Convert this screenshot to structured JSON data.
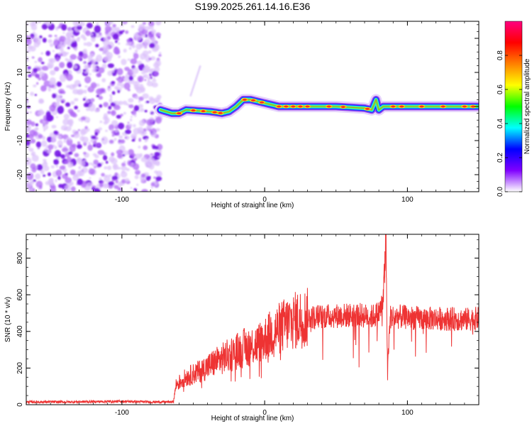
{
  "title": "S199.2025.261.14.16.E36",
  "chart_data": [
    {
      "type": "heatmap",
      "name": "spectrogram",
      "xlabel": "Height of straight line (km)",
      "ylabel": "Frequency (Hz)",
      "xlim": [
        -167,
        150
      ],
      "ylim": [
        -25,
        25
      ],
      "x_ticks": [
        -100,
        0,
        100
      ],
      "y_ticks": [
        -20,
        -10,
        0,
        10,
        20
      ],
      "noise_region_x": [
        -167,
        -73
      ],
      "signal_start_x": -73,
      "ridge": {
        "x": [
          -73,
          -65,
          -60,
          -55,
          -45,
          -38,
          -30,
          -25,
          -20,
          -15,
          -10,
          -5,
          0,
          10,
          30,
          50,
          70,
          75,
          78,
          80,
          83,
          90,
          100,
          120,
          150
        ],
        "y": [
          -1,
          -2,
          -2,
          -1,
          -1.3,
          -1.5,
          -2,
          -1.5,
          0,
          2,
          2,
          1.5,
          1,
          0,
          0,
          0,
          -0.5,
          -1,
          2,
          -1,
          0,
          0,
          0,
          0,
          0
        ]
      },
      "colorbar": {
        "label": "Normalized spectral amplitude",
        "range": [
          0,
          1
        ],
        "ticks": [
          "0.0",
          "0.2",
          "0.4",
          "0.6",
          "0.8"
        ],
        "tick_values": [
          0.0,
          0.2,
          0.4,
          0.6,
          0.8
        ],
        "colors": [
          "#ffffff",
          "#8000ff",
          "#0000ff",
          "#00ffff",
          "#00ff00",
          "#ffff00",
          "#ff8000",
          "#ff0000",
          "#ff0080"
        ]
      }
    },
    {
      "type": "line",
      "name": "snr",
      "xlabel": "Height of straight line (km)",
      "ylabel": "SNR (10 * v/v)",
      "xlim": [
        -167,
        150
      ],
      "ylim": [
        0,
        930
      ],
      "x_ticks": [
        -100,
        0,
        100
      ],
      "y_ticks": [
        0,
        200,
        400,
        600,
        800
      ],
      "color": "#ee3333",
      "series": [
        {
          "name": "SNR",
          "x": [
            -167,
            -140,
            -100,
            -80,
            -64,
            -62,
            -55,
            -45,
            -35,
            -25,
            -15,
            -5,
            5,
            15,
            25,
            35,
            50,
            65,
            75,
            80,
            83,
            85,
            86,
            88,
            95,
            110,
            125,
            140,
            150
          ],
          "y": [
            15,
            15,
            18,
            15,
            15,
            110,
            150,
            185,
            230,
            270,
            310,
            330,
            390,
            440,
            470,
            480,
            485,
            490,
            480,
            500,
            560,
            930,
            200,
            480,
            480,
            470,
            470,
            465,
            470
          ]
        }
      ]
    }
  ]
}
